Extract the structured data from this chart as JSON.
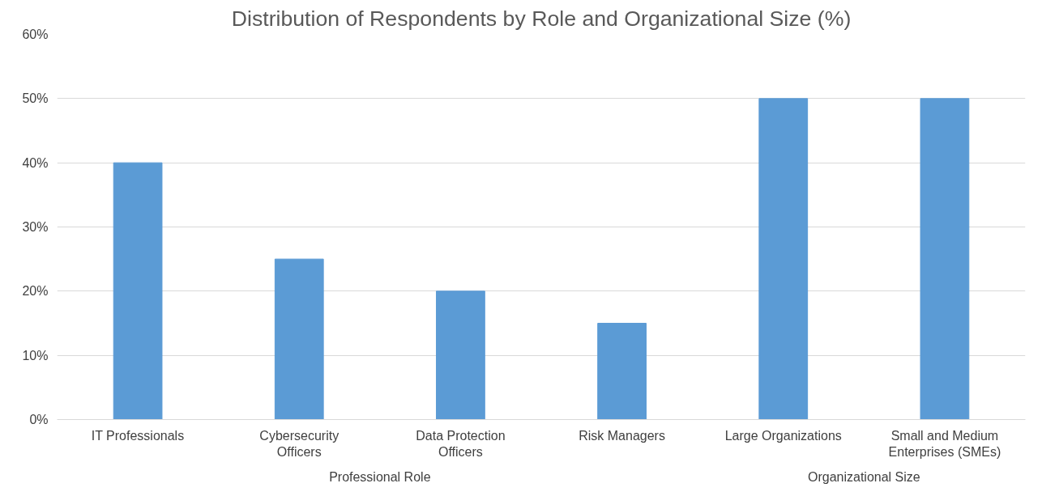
{
  "chart_data": {
    "type": "bar",
    "title": "Distribution of Respondents by Role and Organizational Size (%)",
    "categories": [
      "IT Professionals",
      "Cybersecurity Officers",
      "Data Protection Officers",
      "Risk Managers",
      "Large Organizations",
      "Small and Medium Enterprises (SMEs)"
    ],
    "values": [
      40,
      25,
      20,
      15,
      50,
      50
    ],
    "color": "#5b9bd5",
    "ylim": [
      0,
      60
    ],
    "yticks": [
      {
        "value": 0,
        "label": "0%"
      },
      {
        "value": 10,
        "label": "10%"
      },
      {
        "value": 20,
        "label": "20%"
      },
      {
        "value": 30,
        "label": "30%"
      },
      {
        "value": 40,
        "label": "40%"
      },
      {
        "value": 50,
        "label": "50%"
      },
      {
        "value": 60,
        "label": "60%"
      }
    ],
    "grid": "y",
    "annotations": [
      "Professional Role",
      "Organizational Size"
    ]
  }
}
